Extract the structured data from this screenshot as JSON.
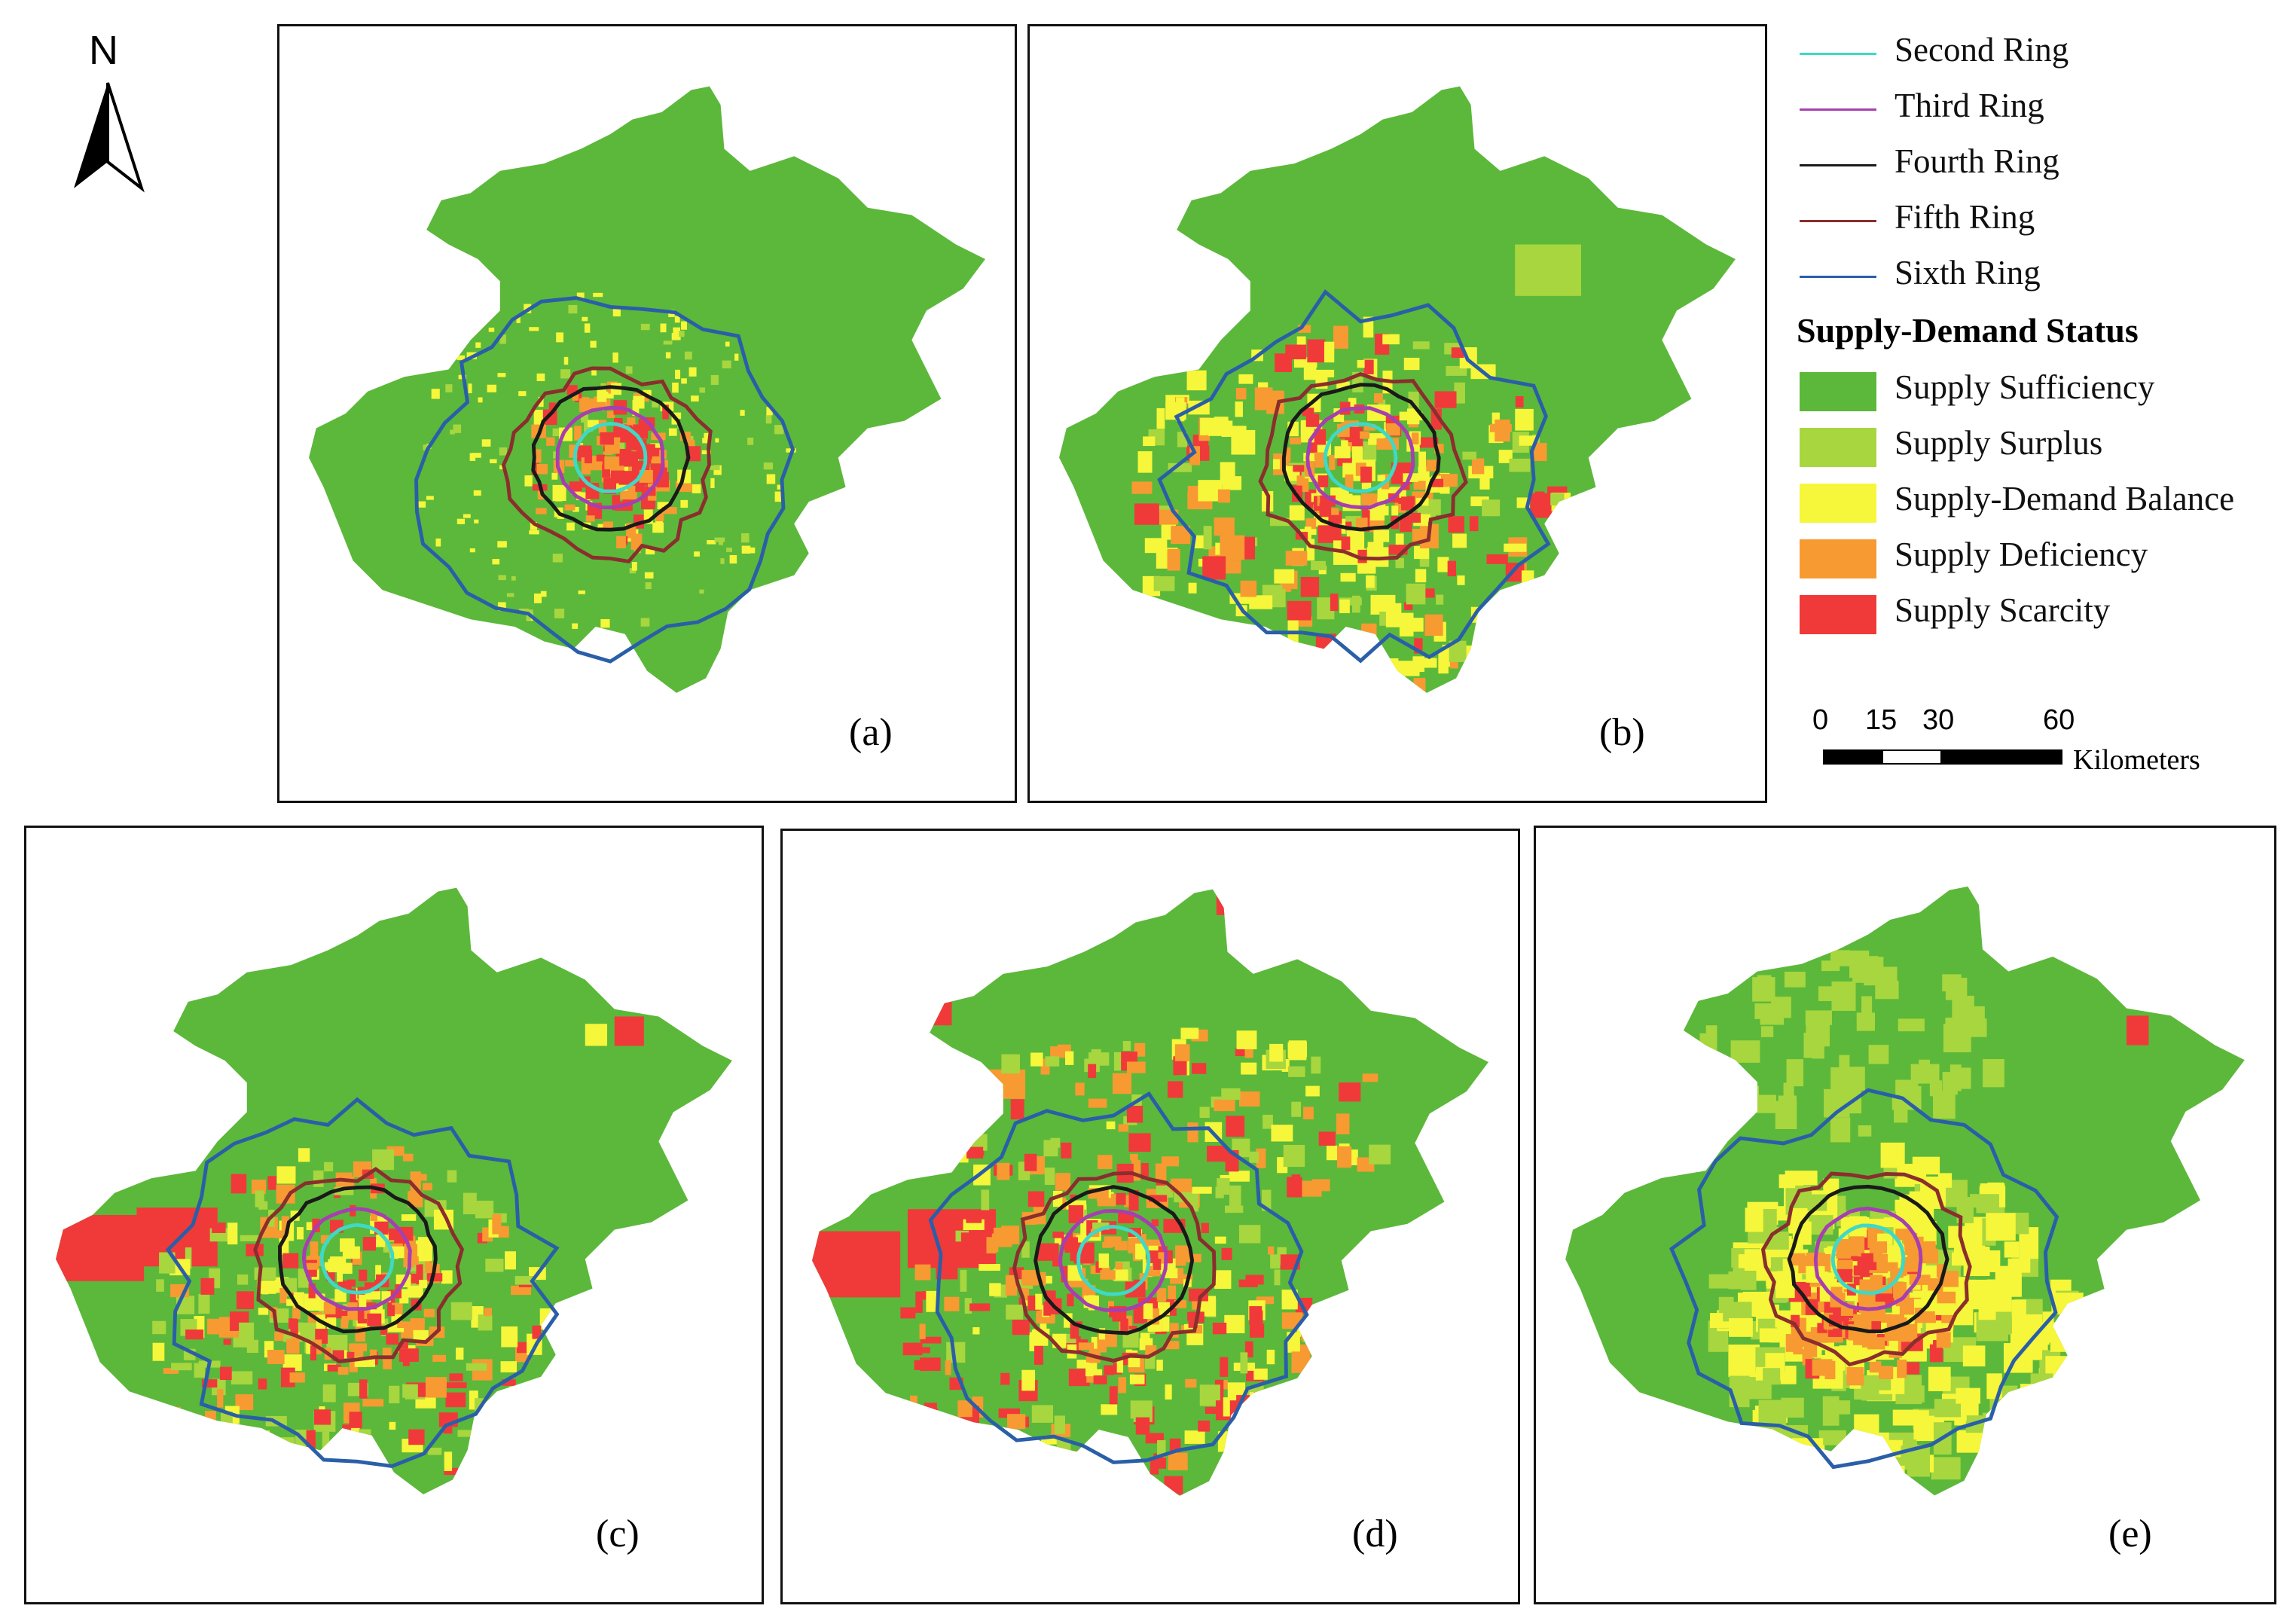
{
  "north_arrow": {
    "letter": "N",
    "icon": "north-arrow-icon"
  },
  "panels": [
    {
      "id": "a",
      "label": "(a)",
      "scheme": "a"
    },
    {
      "id": "b",
      "label": "(b)",
      "scheme": "b"
    },
    {
      "id": "c",
      "label": "(c)",
      "scheme": "c"
    },
    {
      "id": "d",
      "label": "(d)",
      "scheme": "d"
    },
    {
      "id": "e",
      "label": "(e)",
      "scheme": "e"
    }
  ],
  "legend": {
    "rings": [
      {
        "label": "Second Ring",
        "color": "#3fd9c6"
      },
      {
        "label": "Third Ring",
        "color": "#a63fb0"
      },
      {
        "label": "Fourth Ring",
        "color": "#1a1a1a"
      },
      {
        "label": "Fifth Ring",
        "color": "#8a2e2e"
      },
      {
        "label": "Sixth Ring",
        "color": "#2a5fa8"
      }
    ],
    "status_title": "Supply-Demand Status",
    "status": [
      {
        "label": "Supply Sufficiency",
        "color": "#5cb83a"
      },
      {
        "label": "Supply Surplus",
        "color": "#a7d63f"
      },
      {
        "label": "Supply-Demand Balance",
        "color": "#f6f63a"
      },
      {
        "label": "Supply Deficiency",
        "color": "#f79a32"
      },
      {
        "label": "Supply Scarcity",
        "color": "#f03a3a"
      }
    ]
  },
  "scale_bar": {
    "ticks": [
      "0",
      "15",
      "30",
      "60"
    ],
    "unit": "Kilometers"
  }
}
